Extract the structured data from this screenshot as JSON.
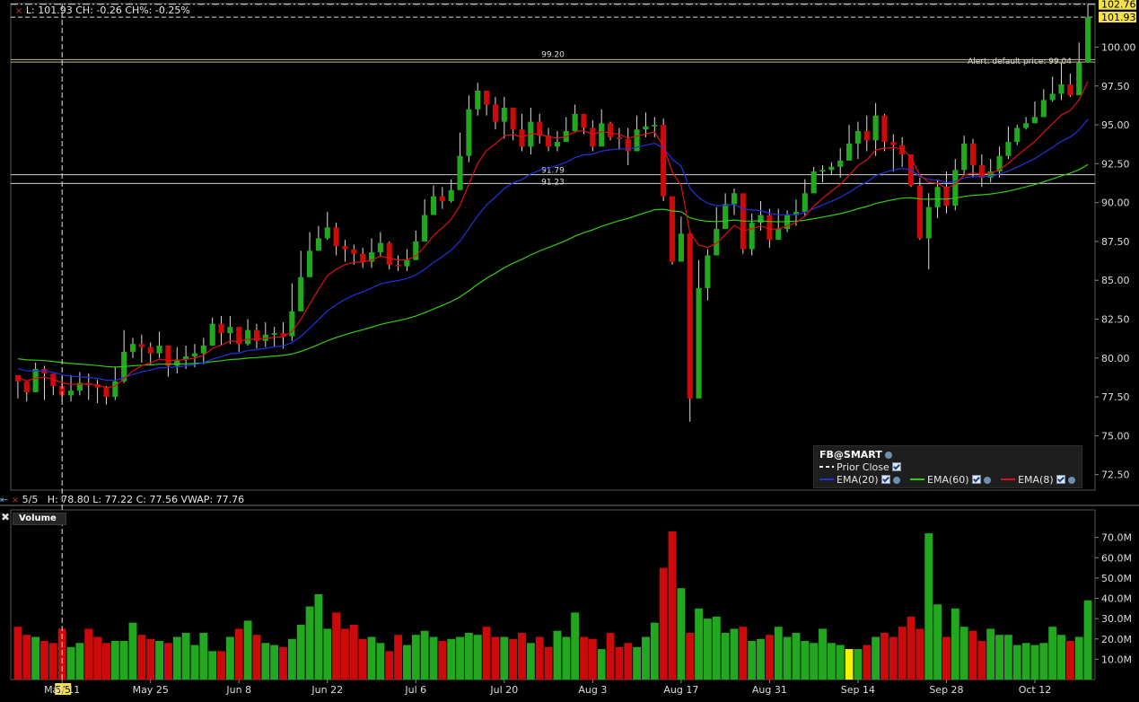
{
  "header": {
    "price_line": "L: 101.93 CH: -0.26 CH%: -0.25%",
    "bar_info": "5/5   H: 78.80 L: 77.22 C: 77.56 VWAP: 77.76"
  },
  "legend": {
    "title": "FB@SMART",
    "prior_close": "Prior Close",
    "ema20": "EMA(20)",
    "ema60": "EMA(60)",
    "ema8": "EMA(8)"
  },
  "volume_panel": {
    "title": "Volume"
  },
  "annotations": {
    "level_9920": "99.20",
    "level_9179": "91.79",
    "level_9123": "91.23",
    "alert": "Alert: default price: 99.04",
    "last_price_tag": "101.93",
    "high_price_tag": "102.76",
    "crosshair_date": "5/5"
  },
  "colors": {
    "up": "#22a81e",
    "down": "#cc0a0a",
    "ema20": "#2233dd",
    "ema60": "#33cc11",
    "ema8": "#dd1111",
    "highlight_volume": "#f4f400",
    "price_tag": "#f4e04d"
  },
  "chart_data": {
    "type": "candlestick",
    "xlabel": "",
    "ylabel": "",
    "x_tick_labels": [
      "May 11",
      "May 25",
      "Jun 8",
      "Jun 22",
      "Jul 6",
      "Jul 20",
      "Aug 3",
      "Aug 17",
      "Aug 31",
      "Sep 14",
      "Sep 28",
      "Oct 12"
    ],
    "x_tick_positions": [
      5,
      15,
      25,
      35,
      45,
      55,
      65,
      75,
      85,
      95,
      105,
      115
    ],
    "ylim": [
      71.5,
      102.8
    ],
    "y_ticks": [
      72.5,
      75,
      77.5,
      80,
      82.5,
      85,
      87.5,
      90,
      92.5,
      95,
      97.5,
      100
    ],
    "volume_ylim": [
      0,
      80
    ],
    "volume_ticks": [
      "10.0M",
      "20.0M",
      "30.0M",
      "40.0M",
      "50.0M",
      "60.0M",
      "70.0M"
    ],
    "volume_tick_values": [
      10,
      20,
      30,
      40,
      50,
      60,
      70
    ],
    "horizontal_levels": [
      99.2,
      99.04,
      91.79,
      91.23
    ],
    "dashed_levels": [
      102.76,
      101.93
    ],
    "crosshair_index": 5,
    "highlight_volume_index": 94,
    "closes": [
      78.5,
      77.8,
      79.3,
      79.0,
      78.2,
      77.6,
      77.9,
      78.4,
      78.3,
      78.1,
      77.5,
      78.5,
      80.4,
      80.9,
      80.7,
      80.3,
      80.8,
      79.5,
      79.9,
      80.1,
      80.3,
      80.8,
      82.2,
      81.6,
      82.0,
      80.9,
      81.8,
      81.1,
      81.5,
      81.6,
      81.4,
      83.0,
      85.2,
      86.9,
      87.7,
      88.4,
      87.2,
      87.0,
      86.7,
      86.2,
      86.8,
      87.4,
      86.0,
      85.9,
      86.3,
      87.5,
      89.2,
      90.4,
      90.1,
      90.8,
      93.0,
      96.0,
      97.2,
      96.3,
      95.2,
      96.1,
      94.7,
      93.6,
      95.2,
      94.3,
      93.6,
      93.9,
      94.6,
      95.7,
      94.8,
      93.6,
      95.1,
      94.2,
      94.1,
      93.3,
      94.7,
      94.9,
      95.0,
      90.4,
      86.2,
      88.0,
      77.4,
      84.5,
      86.6,
      88.3,
      89.9,
      90.6,
      87.0,
      88.7,
      89.2,
      87.6,
      88.3,
      89.2,
      89.4,
      90.6,
      92.0,
      92.1,
      92.3,
      92.7,
      93.8,
      94.6,
      94.0,
      95.6,
      93.9,
      93.7,
      93.1,
      91.1,
      87.7,
      89.7,
      91.0,
      89.8,
      92.1,
      93.8,
      92.4,
      91.6,
      92.0,
      93.0,
      93.9,
      94.8,
      95.1,
      95.5,
      96.6,
      97.0,
      97.6,
      96.9,
      99.0,
      101.93
    ],
    "highs": [
      78.8,
      78.5,
      79.7,
      79.5,
      78.8,
      78.8,
      78.9,
      79.1,
      79.0,
      78.6,
      78.2,
      79.4,
      81.8,
      81.3,
      81.5,
      81.0,
      81.7,
      80.4,
      80.7,
      80.8,
      80.9,
      81.3,
      82.6,
      82.7,
      82.7,
      81.9,
      82.5,
      82.2,
      82.3,
      82.0,
      82.3,
      84.8,
      86.9,
      88.1,
      88.5,
      89.4,
      88.7,
      87.6,
      87.3,
      87.1,
      87.7,
      88.1,
      87.5,
      86.6,
      87.0,
      88.2,
      90.2,
      91.1,
      91.0,
      91.5,
      94.5,
      96.9,
      97.7,
      97.1,
      96.8,
      96.8,
      95.5,
      95.7,
      96.1,
      95.7,
      94.8,
      94.6,
      95.5,
      96.3,
      95.5,
      95.3,
      96.0,
      95.2,
      94.8,
      94.8,
      95.6,
      95.8,
      95.5,
      95.4,
      89.5,
      89.1,
      87.3,
      86.3,
      87.0,
      89.7,
      90.6,
      90.9,
      90.4,
      89.3,
      90.1,
      89.6,
      89.6,
      89.5,
      90.2,
      91.5,
      92.3,
      92.4,
      92.6,
      93.5,
      95.0,
      95.2,
      95.6,
      96.4,
      95.7,
      94.4,
      94.2,
      93.1,
      91.6,
      90.6,
      91.5,
      92.0,
      92.8,
      94.3,
      94.1,
      93.1,
      92.8,
      93.6,
      94.9,
      95.0,
      95.5,
      96.5,
      97.3,
      98.1,
      99.0,
      98.3,
      100.3,
      102.76
    ],
    "lows": [
      77.4,
      77.2,
      77.8,
      77.3,
      77.6,
      77.2,
      77.2,
      77.6,
      77.3,
      77.1,
      77.0,
      77.3,
      78.4,
      80.0,
      79.7,
      79.6,
      80.0,
      78.8,
      79.0,
      79.3,
      79.4,
      79.6,
      80.8,
      80.8,
      80.9,
      80.4,
      80.8,
      80.6,
      80.7,
      80.7,
      80.6,
      81.1,
      83.1,
      85.6,
      86.9,
      87.6,
      86.6,
      86.2,
      86.0,
      85.8,
      85.8,
      86.5,
      85.7,
      85.6,
      85.6,
      86.9,
      88.3,
      89.7,
      89.6,
      90.0,
      91.8,
      92.6,
      95.6,
      95.6,
      94.7,
      94.1,
      94.0,
      93.3,
      93.1,
      93.8,
      93.3,
      93.3,
      93.9,
      94.5,
      94.4,
      93.3,
      93.9,
      94.0,
      93.4,
      92.4,
      93.9,
      94.2,
      94.2,
      90.1,
      86.0,
      86.6,
      75.9,
      82.7,
      83.7,
      87.2,
      88.5,
      89.2,
      86.7,
      86.6,
      88.2,
      87.1,
      87.7,
      88.1,
      88.5,
      89.1,
      90.7,
      91.3,
      91.8,
      91.6,
      92.8,
      92.8,
      93.3,
      93.0,
      93.3,
      92.0,
      92.3,
      91.0,
      87.6,
      85.7,
      89.0,
      89.3,
      89.5,
      91.8,
      91.6,
      91.0,
      91.3,
      91.6,
      92.8,
      93.7,
      94.7,
      95.1,
      96.1,
      96.5,
      96.6,
      96.8,
      98.3,
      100.8
    ],
    "volumes_m": [
      26,
      22,
      21,
      19,
      18,
      25,
      16,
      18,
      25,
      21,
      18,
      19,
      19,
      28,
      22,
      20,
      19,
      18,
      21,
      23,
      17,
      23,
      14,
      14,
      21,
      25,
      29,
      22,
      18,
      17,
      16,
      20,
      27,
      36,
      42,
      25,
      33,
      25,
      27,
      20,
      21,
      18,
      14,
      22,
      17,
      22,
      24,
      21,
      19,
      20,
      21,
      23,
      22,
      26,
      21,
      21,
      20,
      23,
      18,
      21,
      16,
      24,
      21,
      33,
      21,
      20,
      15,
      23,
      16,
      18,
      16,
      21,
      28,
      55,
      73,
      45,
      23,
      35,
      30,
      31,
      23,
      25,
      26,
      19,
      20,
      22,
      26,
      21,
      23,
      19,
      18,
      25,
      18,
      17,
      15,
      15,
      17,
      21,
      23,
      21,
      26,
      31,
      25,
      72,
      37,
      21,
      35,
      26,
      24,
      19,
      25,
      22,
      22,
      17,
      18,
      17,
      18,
      26,
      22,
      19,
      21,
      39
    ]
  }
}
